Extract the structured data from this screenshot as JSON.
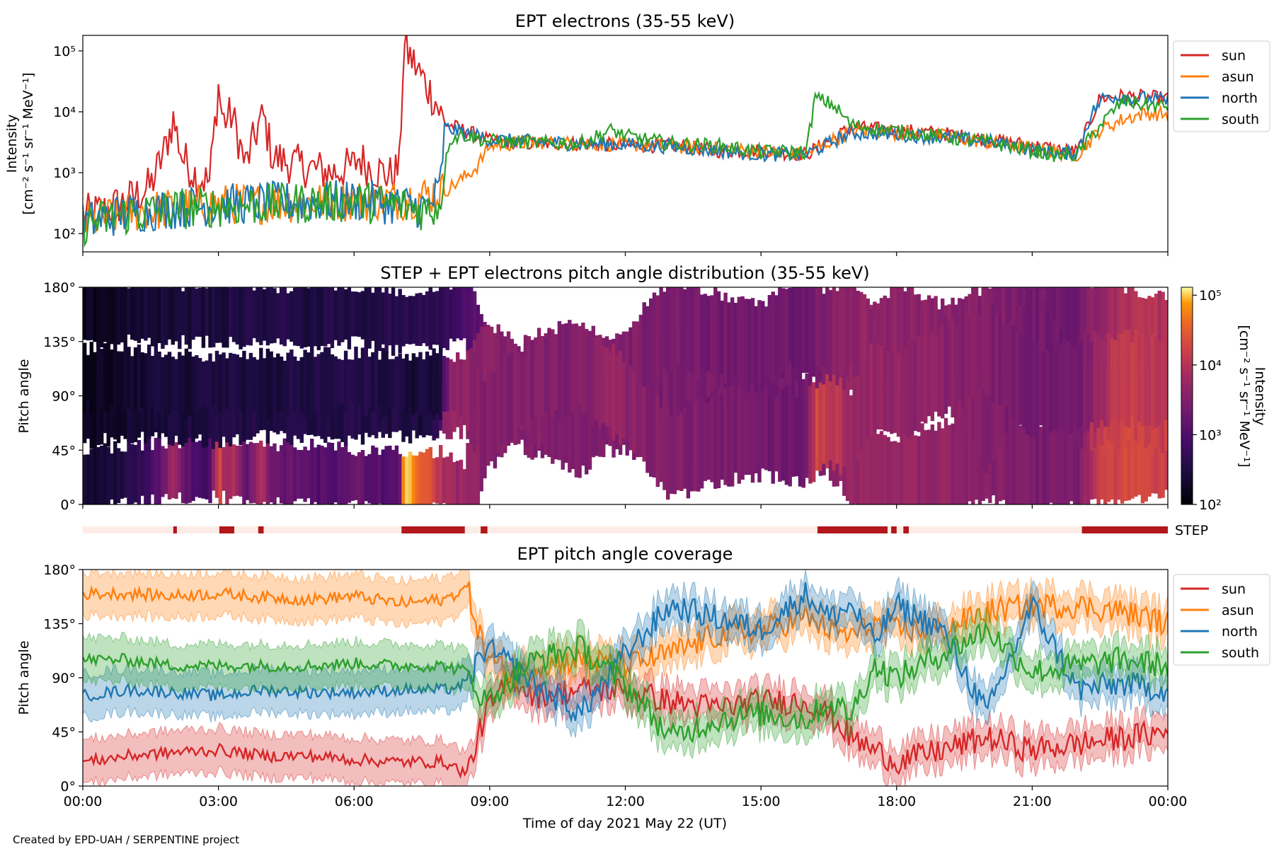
{
  "figure": {
    "credit": "Created by EPD-UAH / SERPENTINE project",
    "step_label": "STEP",
    "xlabel": "Time of day 2021 May 22 (UT)"
  },
  "colors": {
    "sun": "#d62728",
    "asun": "#ff7f0e",
    "north": "#1f77b4",
    "south": "#2ca02c",
    "step_on": "#b2181b",
    "step_off": "#fdece6"
  },
  "chart_data": [
    {
      "type": "line",
      "title": "EPT electrons (35-55 keV)",
      "ylabel_line1": "Intensity",
      "ylabel_line2": "[cm⁻² s⁻¹ sr⁻¹ MeV⁻¹]",
      "yscale": "log",
      "ylim": [
        50,
        180000
      ],
      "yticks": [
        "10²",
        "10³",
        "10⁴",
        "10⁵"
      ],
      "xlim_hours": [
        0,
        24
      ],
      "legend_placement": "outside-right",
      "series": [
        {
          "name": "sun",
          "t": [
            0,
            0.5,
            1,
            1.5,
            1.8,
            2,
            2.2,
            2.5,
            2.8,
            3,
            3.1,
            3.3,
            3.6,
            3.9,
            4,
            4.2,
            4.5,
            5,
            5.5,
            6,
            6.1,
            6.3,
            6.5,
            6.8,
            7,
            7.1,
            7.4,
            7.8,
            8,
            8.5,
            9,
            10,
            11,
            12,
            13,
            14,
            15,
            16,
            17,
            18,
            19,
            20,
            21,
            21.6,
            22,
            22.5,
            23,
            23.5,
            24
          ],
          "v": [
            200,
            240,
            350,
            600,
            2200,
            7500,
            1800,
            900,
            700,
            26000,
            7000,
            9000,
            1300,
            6500,
            8000,
            1800,
            1500,
            1200,
            1000,
            1300,
            1800,
            1300,
            1100,
            900,
            1200,
            120000,
            50000,
            15000,
            6500,
            4800,
            3300,
            3000,
            3000,
            2800,
            2800,
            2300,
            2300,
            2000,
            5500,
            5000,
            4400,
            3500,
            2800,
            2400,
            2200,
            17000,
            18000,
            17500,
            16500
          ]
        },
        {
          "name": "asun",
          "t": [
            0,
            1,
            2,
            3,
            4,
            5,
            6,
            7,
            7.5,
            8,
            8.3,
            8.7,
            9,
            10,
            11,
            12,
            13,
            14,
            15,
            16,
            17,
            18,
            19,
            20,
            21,
            21.6,
            22,
            22.5,
            23,
            23.5,
            24
          ],
          "v": [
            150,
            220,
            260,
            300,
            320,
            330,
            350,
            360,
            420,
            500,
            700,
            1200,
            2800,
            3200,
            3000,
            2900,
            2700,
            2500,
            2200,
            2000,
            5000,
            4500,
            4000,
            3200,
            2500,
            2100,
            2000,
            5000,
            7500,
            9500,
            9000
          ]
        },
        {
          "name": "north",
          "t": [
            0,
            1,
            2,
            3,
            4,
            5,
            6,
            7,
            7.6,
            7.9,
            8,
            9,
            10,
            11,
            12,
            13,
            14,
            15,
            16,
            17,
            18,
            19,
            20,
            21,
            21.6,
            22,
            22.3,
            22.6,
            23,
            23.5,
            24
          ],
          "v": [
            150,
            220,
            260,
            300,
            320,
            330,
            350,
            300,
            260,
            500,
            5500,
            3500,
            3200,
            3000,
            2900,
            2700,
            2300,
            2000,
            2000,
            4500,
            4300,
            3800,
            3300,
            2400,
            2000,
            2200,
            9000,
            18000,
            17500,
            16500,
            15000
          ]
        },
        {
          "name": "south",
          "t": [
            0,
            1,
            2,
            3,
            4,
            5,
            6,
            7,
            7.6,
            7.9,
            8.1,
            8.4,
            9,
            10,
            11,
            11.7,
            12,
            13,
            14,
            15,
            16,
            16.2,
            16.6,
            17,
            18,
            19,
            20,
            21,
            21.6,
            22,
            22.5,
            23,
            23.5,
            24
          ],
          "v": [
            140,
            210,
            250,
            280,
            300,
            320,
            340,
            290,
            240,
            300,
            3500,
            4200,
            3300,
            3100,
            3000,
            5000,
            4000,
            3000,
            2800,
            2200,
            2200,
            17000,
            13000,
            6000,
            4800,
            3900,
            3200,
            2300,
            1900,
            2000,
            6000,
            15000,
            13000,
            12000
          ]
        }
      ]
    },
    {
      "type": "heatmap",
      "title": "STEP + EPT electrons pitch angle distribution (35-55 keV)",
      "ylabel": "Pitch angle",
      "ylim": [
        0,
        180
      ],
      "yticks": [
        "0°",
        "45°",
        "90°",
        "135°",
        "180°"
      ],
      "colorbar_label_line1": "Intensity",
      "colorbar_label_line2": "[cm⁻² s⁻¹ sr⁻¹ MeV⁻¹]",
      "colorbar_scale": "log",
      "colorbar_range": [
        100,
        130000
      ],
      "colorbar_ticks": [
        "10²",
        "10³",
        "10⁴",
        "10⁵"
      ],
      "colormap": "inferno"
    },
    {
      "type": "bar",
      "label": "STEP",
      "intervals_hours": [
        [
          2.0,
          2.08
        ],
        [
          3.02,
          3.35
        ],
        [
          3.88,
          4.0
        ],
        [
          7.05,
          8.45
        ],
        [
          8.8,
          8.95
        ],
        [
          16.25,
          17.8
        ],
        [
          17.88,
          18.0
        ],
        [
          18.15,
          18.27
        ],
        [
          22.1,
          24.0
        ]
      ]
    },
    {
      "type": "line",
      "title": "EPT pitch angle coverage",
      "ylabel": "Pitch angle",
      "ylim": [
        0,
        180
      ],
      "yticks": [
        "0°",
        "45°",
        "90°",
        "135°",
        "180°"
      ],
      "xlim_hours": [
        0,
        24
      ],
      "xticks": [
        "00:00",
        "03:00",
        "06:00",
        "09:00",
        "12:00",
        "15:00",
        "18:00",
        "21:00",
        "00:00"
      ],
      "legend_placement": "outside-right",
      "series": [
        {
          "name": "sun",
          "t": [
            0,
            1,
            2,
            3,
            4,
            5,
            6,
            7,
            8,
            8.5,
            8.9,
            9.5,
            10,
            11,
            12,
            13,
            14,
            15,
            16,
            16.5,
            17,
            17.5,
            18,
            19,
            20,
            21,
            22,
            23,
            24
          ],
          "v": [
            20,
            25,
            28,
            30,
            25,
            25,
            22,
            20,
            20,
            10,
            60,
            90,
            75,
            80,
            80,
            70,
            65,
            70,
            70,
            60,
            40,
            30,
            20,
            30,
            40,
            30,
            35,
            40,
            45
          ]
        },
        {
          "name": "asun",
          "t": [
            0,
            1,
            2,
            3,
            4,
            5,
            6,
            7,
            8,
            8.5,
            8.9,
            9.5,
            10,
            11,
            12,
            13,
            14,
            15,
            16,
            16.5,
            17,
            17.5,
            18,
            19,
            20,
            21,
            22,
            23,
            24
          ],
          "v": [
            160,
            160,
            158,
            160,
            157,
            155,
            158,
            152,
            155,
            165,
            110,
            90,
            100,
            105,
            100,
            110,
            125,
            130,
            140,
            130,
            125,
            135,
            130,
            130,
            145,
            150,
            150,
            145,
            135
          ]
        },
        {
          "name": "north",
          "t": [
            0,
            1,
            2,
            3,
            4,
            5,
            6,
            7,
            8,
            8.5,
            8.9,
            9.5,
            10,
            11,
            12,
            13,
            14,
            15,
            16,
            16.5,
            17,
            17.5,
            18,
            19,
            20,
            21,
            22,
            23,
            24
          ],
          "v": [
            75,
            80,
            78,
            75,
            80,
            78,
            78,
            80,
            80,
            85,
            115,
            100,
            85,
            60,
            110,
            150,
            140,
            130,
            160,
            140,
            150,
            120,
            150,
            130,
            60,
            150,
            80,
            85,
            80
          ]
        },
        {
          "name": "south",
          "t": [
            0,
            1,
            2,
            3,
            4,
            5,
            6,
            7,
            8,
            8.5,
            8.9,
            9.5,
            10,
            11,
            12,
            13,
            14,
            15,
            16,
            16.5,
            17,
            17.5,
            18,
            19,
            20,
            21,
            22,
            23,
            24
          ],
          "v": [
            105,
            105,
            100,
            100,
            100,
            100,
            102,
            100,
            100,
            95,
            70,
            90,
            105,
            115,
            85,
            40,
            55,
            60,
            55,
            70,
            60,
            100,
            90,
            110,
            130,
            95,
            100,
            105,
            100
          ]
        }
      ]
    }
  ]
}
